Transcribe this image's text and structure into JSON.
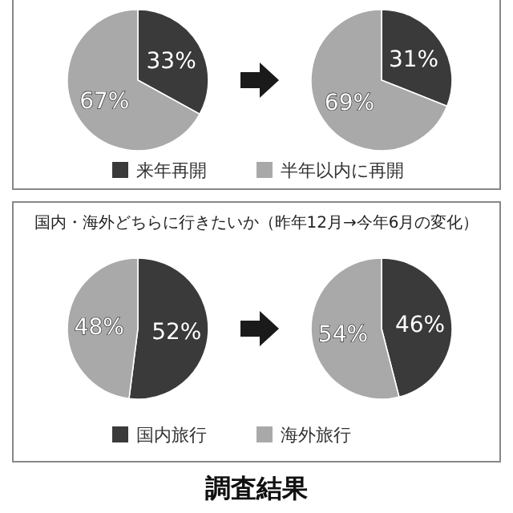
{
  "chart_data": [
    {
      "type": "pie",
      "categories": [
        "来年再開",
        "半年以内に再開"
      ],
      "colors": [
        "#3a3a3a",
        "#a9a9a9"
      ],
      "legend": "bottom",
      "series": [
        {
          "values": [
            33,
            67
          ],
          "value_labels": [
            "33%",
            "67%"
          ]
        },
        {
          "values": [
            31,
            69
          ],
          "value_labels": [
            "31%",
            "69%"
          ]
        }
      ]
    },
    {
      "type": "pie",
      "title": "国内・海外どちらに行きたいか（昨年12月→今年6月の変化）",
      "categories": [
        "国内旅行",
        "海外旅行"
      ],
      "colors": [
        "#3a3a3a",
        "#a9a9a9"
      ],
      "legend": "bottom",
      "annotations": [
        "調査結果"
      ],
      "series": [
        {
          "values": [
            52,
            48
          ],
          "value_labels": [
            "52%",
            "48%"
          ]
        },
        {
          "values": [
            46,
            54
          ],
          "value_labels": [
            "46%",
            "54%"
          ]
        }
      ]
    }
  ]
}
